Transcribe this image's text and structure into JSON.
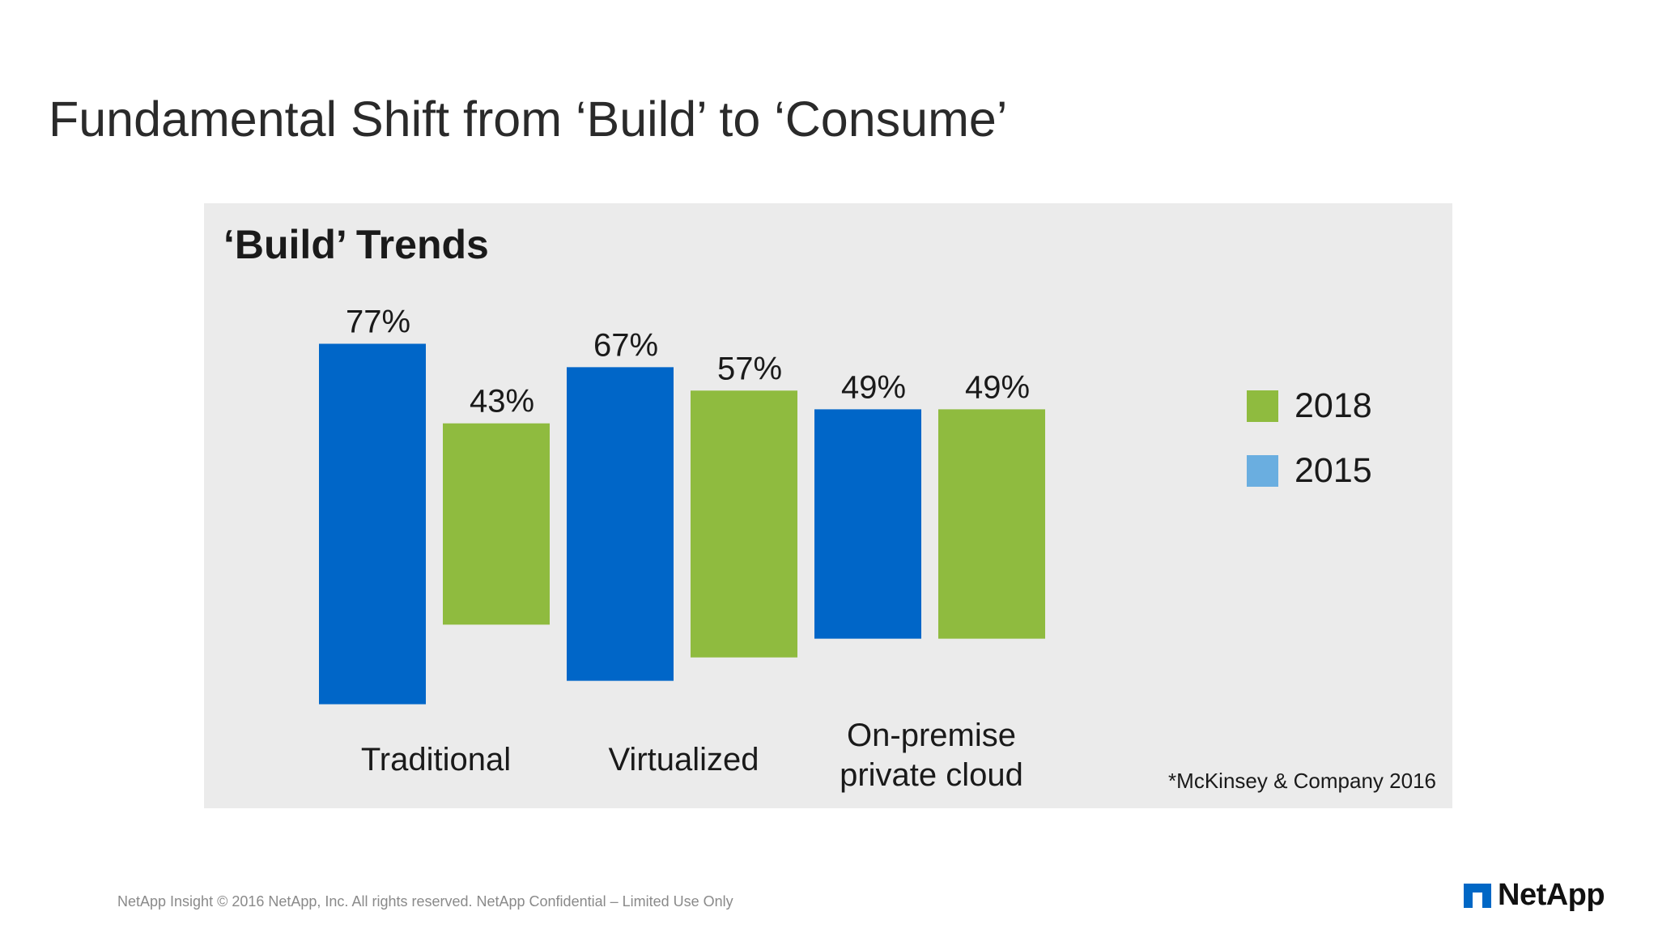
{
  "slide": {
    "title": "Fundamental Shift from ‘Build’ to ‘Consume’"
  },
  "panel": {
    "title": "‘Build’ Trends",
    "source_note": "*McKinsey & Company 2016"
  },
  "legend": [
    {
      "label": "2018",
      "color": "#8fbb3f"
    },
    {
      "label": "2015",
      "color": "#6aaee0"
    }
  ],
  "chart_data": {
    "type": "bar",
    "title": "‘Build’ Trends",
    "categories": [
      [
        "Traditional"
      ],
      [
        "Virtualized"
      ],
      [
        "On-premise",
        "private cloud"
      ]
    ],
    "series": [
      {
        "name": "2015",
        "values": [
          77,
          67,
          49
        ],
        "labels": [
          "77%",
          "67%",
          "49%"
        ],
        "color": "#0066c8"
      },
      {
        "name": "2018",
        "values": [
          43,
          57,
          49
        ],
        "labels": [
          "43%",
          "57%",
          "49%"
        ],
        "color": "#8fbb3f"
      }
    ],
    "ylim": [
      0,
      100
    ],
    "legend_position": "right"
  },
  "footer": {
    "text": "NetApp Insight  © 2016 NetApp, Inc. All rights reserved. NetApp Confidential – Limited Use Only",
    "logo_text": "NetApp",
    "logo_color": "#0067c5"
  }
}
